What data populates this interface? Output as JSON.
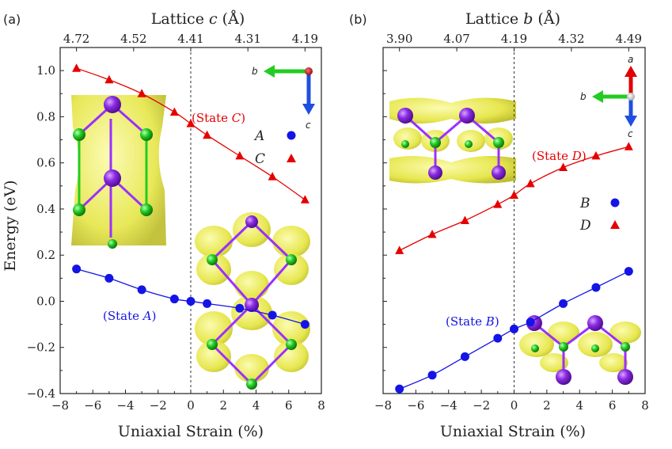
{
  "chart_data": [
    {
      "panel": "(a)",
      "type": "line",
      "top_xlabel": "Lattice c (Å)",
      "top_xlabel_parts": [
        "Lattice ",
        "c",
        " (Å)"
      ],
      "top_ticks": [
        "4.72",
        "4.52",
        "4.41",
        "4.31",
        "4.19"
      ],
      "xlabel": "Uniaxial Strain (%)",
      "ylabel": "Energy (eV)",
      "xlim": [
        -8,
        8
      ],
      "ylim": [
        -0.4,
        1.1
      ],
      "xticks": [
        "−8",
        "−6",
        "−4",
        "−2",
        "0",
        "2",
        "4",
        "6",
        "8"
      ],
      "yticks": [
        "−0.4",
        "−0.2",
        "0.0",
        "0.2",
        "0.4",
        "0.6",
        "0.8",
        "1.0"
      ],
      "series": [
        {
          "name": "A",
          "marker": "circle",
          "color": "#1414e6",
          "x": [
            -7,
            -5,
            -3,
            -1,
            0,
            1,
            3,
            5,
            7
          ],
          "y": [
            0.14,
            0.1,
            0.05,
            0.01,
            0.0,
            -0.01,
            -0.03,
            -0.06,
            -0.1
          ]
        },
        {
          "name": "C",
          "marker": "triangle",
          "color": "#e60000",
          "x": [
            -7,
            -5,
            -3,
            -1,
            0,
            1,
            3,
            5,
            7
          ],
          "y": [
            1.01,
            0.96,
            0.9,
            0.82,
            0.77,
            0.72,
            0.63,
            0.54,
            0.44
          ]
        }
      ],
      "annotations": [
        {
          "text_parts": [
            "(State ",
            "C",
            ")"
          ],
          "color": "#e60000"
        },
        {
          "text_parts": [
            "(State ",
            "A",
            ")"
          ],
          "color": "#1414e6"
        }
      ],
      "legend_position": "top-right",
      "crystal_axes": [
        "b",
        "c"
      ]
    },
    {
      "panel": "(b)",
      "type": "line",
      "top_xlabel": "Lattice b (Å)",
      "top_xlabel_parts": [
        "Lattice ",
        "b",
        " (Å)"
      ],
      "top_ticks": [
        "3.90",
        "4.07",
        "4.19",
        "4.32",
        "4.49"
      ],
      "xlabel": "Uniaxial Strain (%)",
      "ylabel": "",
      "xlim": [
        -8,
        8
      ],
      "ylim": [
        -0.4,
        1.1
      ],
      "xticks": [
        "−8",
        "−6",
        "−4",
        "−2",
        "0",
        "2",
        "4",
        "6",
        "8"
      ],
      "series": [
        {
          "name": "B",
          "marker": "circle",
          "color": "#1414e6",
          "x": [
            -7,
            -5,
            -3,
            -1,
            0,
            1,
            3,
            5,
            7
          ],
          "y": [
            -0.38,
            -0.32,
            -0.24,
            -0.16,
            -0.12,
            -0.09,
            -0.01,
            0.06,
            0.13
          ]
        },
        {
          "name": "D",
          "marker": "triangle",
          "color": "#e60000",
          "x": [
            -7,
            -5,
            -3,
            -1,
            0,
            1,
            3,
            5,
            7
          ],
          "y": [
            0.22,
            0.29,
            0.35,
            0.42,
            0.46,
            0.51,
            0.58,
            0.63,
            0.67
          ]
        }
      ],
      "annotations": [
        {
          "text_parts": [
            "(State ",
            "D",
            ")"
          ],
          "color": "#e60000"
        },
        {
          "text_parts": [
            "(State ",
            "B",
            ")"
          ],
          "color": "#1414e6"
        }
      ],
      "legend_position": "right",
      "crystal_axes": [
        "a",
        "b",
        "c"
      ]
    }
  ]
}
